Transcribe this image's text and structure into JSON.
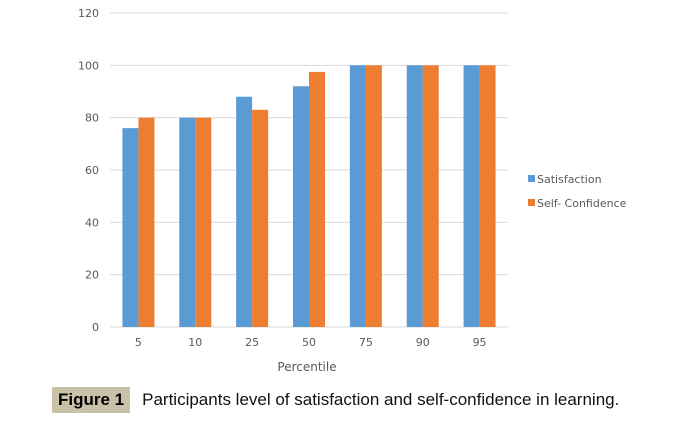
{
  "chart_data": {
    "type": "bar",
    "title": "",
    "xlabel": "Percentile",
    "ylabel": "",
    "categories": [
      "5",
      "10",
      "25",
      "50",
      "75",
      "90",
      "95"
    ],
    "series": [
      {
        "name": "Satisfaction",
        "color": "#5b9bd5",
        "values": [
          76,
          80,
          88,
          92,
          100,
          100,
          100
        ]
      },
      {
        "name": "Self- Confidence",
        "color": "#ed7d31",
        "values": [
          80,
          80,
          83,
          97.5,
          100,
          100,
          100
        ]
      }
    ],
    "ylim": [
      0,
      120
    ],
    "yticks": [
      0,
      20,
      40,
      60,
      80,
      100,
      120
    ],
    "grid": true,
    "legend_position": "right"
  },
  "caption": {
    "label": "Figure 1",
    "text": "Participants level of satisfaction and self-confidence in learning."
  }
}
